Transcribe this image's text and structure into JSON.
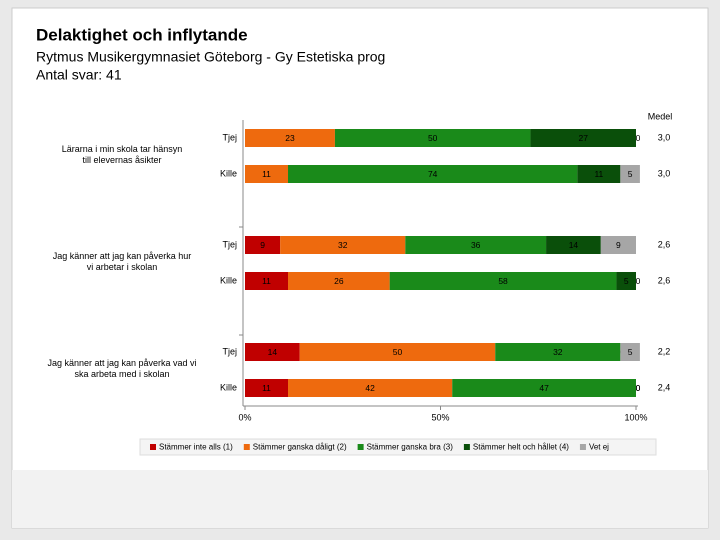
{
  "chart_data": {
    "type": "stacked-bar-horizontal",
    "title": "Delaktighet och inflytande",
    "subtitle": "Rytmus Musikergymnasiet Göteborg - Gy Estetiska prog",
    "note": "Antal svar: 41",
    "groups": [
      "Lärarna i min skola tar hänsyn till elevernas åsikter",
      "Jag känner att jag kan påverka hur vi arbetar i skolan",
      "Jag känner att jag kan påverka vad vi ska arbeta med i skolan"
    ],
    "categories": [
      "Tjej",
      "Kille",
      "Tjej",
      "Kille",
      "Tjej",
      "Kille"
    ],
    "series": [
      {
        "name": "Stämmer inte alls (1)",
        "color": "#c00000",
        "values": [
          0,
          0,
          9,
          11,
          14,
          11
        ]
      },
      {
        "name": "Stämmer ganska dåligt (2)",
        "color": "#ee6a0e",
        "values": [
          23,
          11,
          32,
          26,
          50,
          42
        ]
      },
      {
        "name": "Stämmer ganska bra (3)",
        "color": "#1a8a1a",
        "values": [
          50,
          74,
          36,
          58,
          32,
          47
        ]
      },
      {
        "name": "Stämmer helt och hållet (4)",
        "color": "#0a4f0a",
        "values": [
          27,
          11,
          14,
          5,
          0,
          0
        ]
      },
      {
        "name": "Vet ej",
        "color": "#a6a6a6",
        "values": [
          0,
          5,
          9,
          0,
          5,
          0
        ]
      }
    ],
    "medel_label": "Medel",
    "medel": [
      "3,0",
      "3,0",
      "2,6",
      "2,6",
      "2,2",
      "2,4"
    ],
    "xlim": [
      0,
      100
    ],
    "xticks": [
      {
        "value": 0,
        "label": "0%"
      },
      {
        "value": 50,
        "label": "50%"
      },
      {
        "value": 100,
        "label": "100%"
      }
    ]
  }
}
